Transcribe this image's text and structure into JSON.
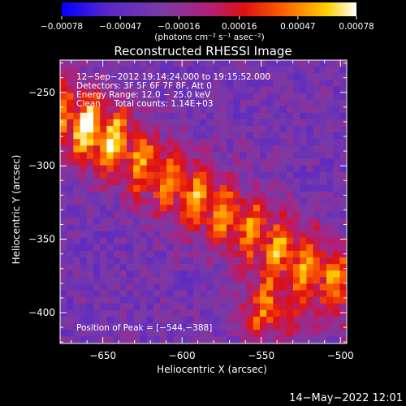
{
  "chart_data": {
    "type": "heatmap",
    "title": "Reconstructed RHESSI Image",
    "xlabel": "Heliocentric X (arcsec)",
    "ylabel": "Heliocentric Y (arcsec)",
    "xlim": [
      -677,
      -496
    ],
    "ylim": [
      -421,
      -228
    ],
    "x_ticks": [
      -650,
      -600,
      -550,
      -500
    ],
    "x_tick_labels": [
      "−650",
      "−600",
      "−550",
      "−500"
    ],
    "y_ticks": [
      -250,
      -300,
      -350,
      -400
    ],
    "y_tick_labels": [
      "−250",
      "−300",
      "−350",
      "−400"
    ],
    "colorbar": {
      "range": [
        -0.00078,
        0.00078
      ],
      "ticks": [
        -0.00078,
        -0.00047,
        -0.00016,
        0.00016,
        0.00047,
        0.00078
      ],
      "tick_labels": [
        "−0.00078",
        "−0.00047",
        "−0.00016",
        "0.00016",
        "0.00047",
        "0.00078"
      ],
      "unit_label": "(photons cm⁻² s⁻¹ asec⁻²)",
      "colors": [
        "#0000ff",
        "#5a28c8",
        "#7a3aa6",
        "#b0207a",
        "#e01010",
        "#ff6600",
        "#ffd000",
        "#ffffff"
      ]
    },
    "annotations": [
      "12−Sep−2012 19:14:24.000 to 19:15:52.000",
      "Detectors: 3F 5F 6F 7F 8F, Att 0",
      "Energy Range: 12.0 − 25.0 keV",
      "Clean     Total counts: 1.14E+03"
    ],
    "peak_label": "Position of Peak = [−544,−388]",
    "peak_position": [
      -544,
      -388
    ],
    "grid": false
  },
  "footer": {
    "timestamp": "14−May−2022 12:01"
  }
}
